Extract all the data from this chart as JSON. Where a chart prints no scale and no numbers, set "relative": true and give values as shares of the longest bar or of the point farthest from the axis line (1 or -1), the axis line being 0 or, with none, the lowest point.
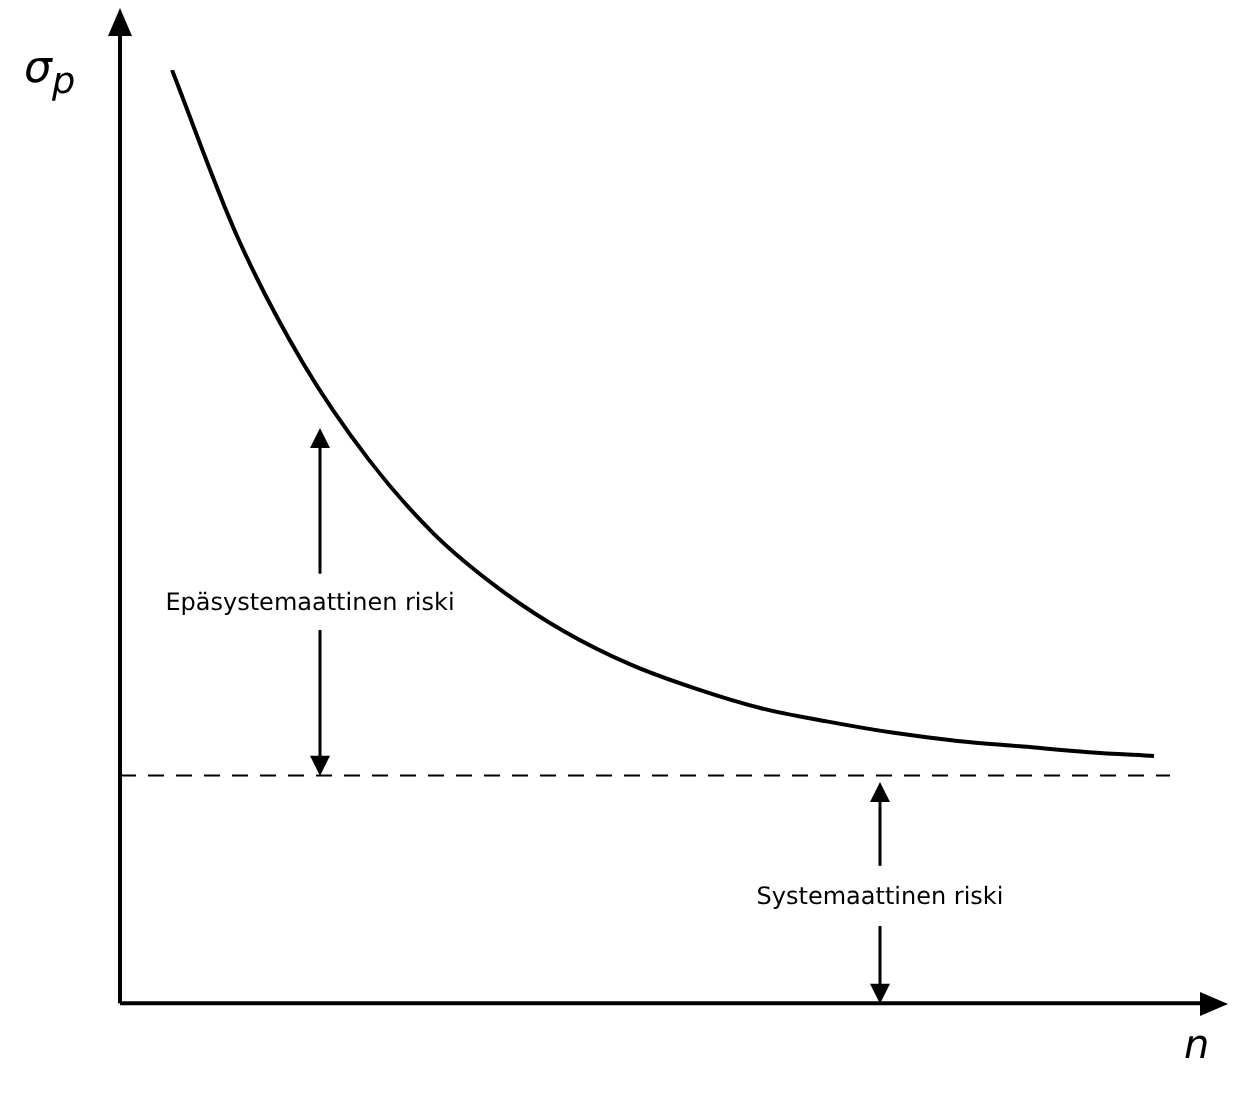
{
  "chart_data": {
    "type": "line",
    "relative": true,
    "xlabel": "n",
    "ylabel": "σ$_{p}$",
    "categories": [
      null,
      null,
      null,
      null,
      null,
      null,
      null,
      null,
      null,
      null,
      null,
      null,
      null,
      null,
      null,
      null
    ],
    "series": [
      {
        "color": "#000000",
        "values": [
          1,
          0.821,
          0.686,
          0.583,
          0.503,
          0.444,
          0.398,
          0.363,
          0.337,
          0.316,
          0.302,
          0.29,
          0.281,
          0.275,
          0.269,
          0.265
        ]
      }
    ],
    "ref_lines": [
      {
        "axis": "y",
        "value": 0.244,
        "color": "#000000",
        "line_style": "dashed"
      }
    ],
    "annotations": [
      "Epäsystemaattinen riski",
      "Systemaattinen riski"
    ],
    "grid": false,
    "legend": false,
    "marker": "none",
    "line_style": "solid"
  }
}
